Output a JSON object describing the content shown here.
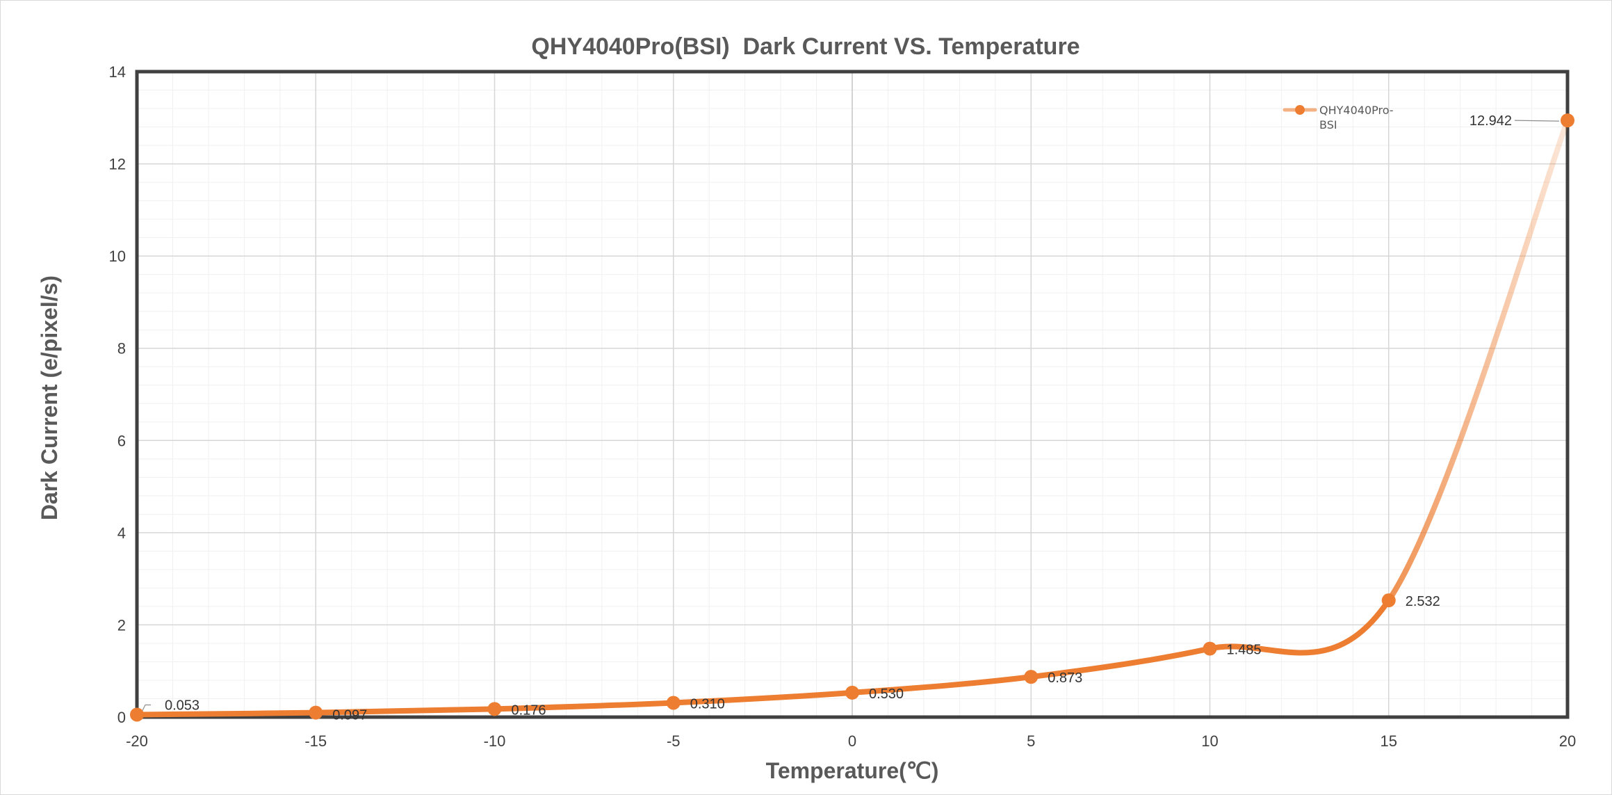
{
  "chart_data": {
    "type": "line",
    "title": "QHY4040Pro(BSI)  Dark Current VS. Temperature",
    "xlabel": "Temperature(℃)",
    "ylabel": "Dark Current (e/pixel/s)",
    "xlim": [
      -20,
      20
    ],
    "ylim": [
      0,
      14
    ],
    "x_ticks": [
      -20,
      -15,
      -10,
      -5,
      0,
      5,
      10,
      15,
      20
    ],
    "y_ticks": [
      0,
      2,
      4,
      6,
      8,
      10,
      12,
      14
    ],
    "x_tick_labels": [
      "-20",
      "-15",
      "-10",
      "-5",
      "0",
      "5",
      "10",
      "15",
      "20"
    ],
    "y_tick_labels": [
      "0",
      "2",
      "4",
      "6",
      "8",
      "10",
      "12",
      "14"
    ],
    "grid": true,
    "legend_position": "top-right",
    "series": [
      {
        "name": "QHY4040Pro-BSI",
        "legend_lines": [
          "QHY4040Pro-",
          "BSI"
        ],
        "color": "#ED7D31",
        "x": [
          -20,
          -15,
          -10,
          -5,
          0,
          5,
          10,
          15,
          20
        ],
        "y": [
          0.053,
          0.097,
          0.176,
          0.31,
          0.53,
          0.873,
          1.485,
          2.532,
          12.942
        ],
        "labels": [
          "0.053",
          "0.097",
          "0.176",
          "0.310",
          "0.530",
          "0.873",
          "1.485",
          "2.532",
          "12.942"
        ]
      }
    ]
  }
}
